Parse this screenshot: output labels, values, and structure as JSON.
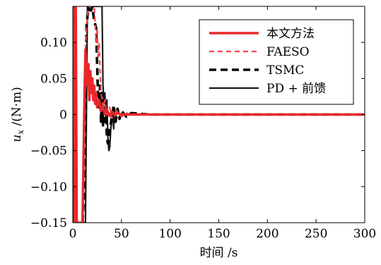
{
  "chart_data": {
    "type": "line",
    "title": "",
    "xlabel": "时间 /s",
    "ylabel_main": "u",
    "ylabel_sub": "x",
    "ylabel_unit": " /(N·m)",
    "xlim": [
      0,
      300
    ],
    "ylim": [
      -0.15,
      0.15
    ],
    "x_ticks": [
      0,
      50,
      100,
      150,
      200,
      250,
      300
    ],
    "x_tick_labels": [
      "0",
      "50",
      "100",
      "150",
      "200",
      "250",
      "300"
    ],
    "y_ticks": [
      -0.15,
      -0.1,
      -0.05,
      0,
      0.05,
      0.1
    ],
    "y_tick_labels": [
      "−0.15",
      "−0.10",
      "−0.05",
      "0",
      "0.05",
      "0.10"
    ],
    "grid": false,
    "legend_position": "top-right",
    "series": [
      {
        "name": "本文方法",
        "color": "#e8282d",
        "dash": "solid",
        "width": "thick",
        "x": [
          0,
          1,
          1.5,
          2,
          2.5,
          3,
          4,
          5,
          6,
          7,
          8,
          9,
          10,
          12,
          13,
          14,
          15,
          16,
          17,
          18,
          19,
          20,
          21,
          22,
          23,
          24,
          25,
          27,
          29,
          31,
          33,
          35,
          38,
          40,
          43,
          46,
          50,
          60,
          80,
          100,
          150,
          200,
          250,
          300
        ],
        "y": [
          0,
          0.15,
          0.15,
          -0.15,
          -0.15,
          0.15,
          -0.15,
          -0.15,
          -0.15,
          -0.15,
          -0.15,
          -0.15,
          -0.15,
          0.02,
          0.09,
          0.06,
          0.04,
          0.07,
          0.02,
          0.06,
          0.03,
          0.05,
          0.02,
          0.04,
          0.015,
          0.03,
          0.01,
          0.02,
          0.005,
          0.012,
          0,
          0.006,
          -0.002,
          0.004,
          -0.001,
          0.002,
          0,
          0,
          0,
          0,
          0,
          0,
          0,
          0
        ]
      },
      {
        "name": "FAESO",
        "color": "#f04545",
        "dash": "dashed",
        "width": "normal",
        "x": [
          0,
          1,
          3,
          5,
          7,
          10,
          12,
          14,
          16,
          18,
          20,
          22,
          24,
          25,
          26,
          27,
          28,
          29,
          31,
          33,
          35,
          38,
          40,
          45,
          50,
          55,
          60,
          70,
          80,
          100,
          150,
          200,
          250,
          300
        ],
        "y": [
          0.15,
          0.15,
          -0.15,
          -0.15,
          -0.15,
          -0.15,
          0.05,
          0.12,
          0.15,
          0.15,
          0.15,
          0.15,
          0.1,
          0.12,
          0.08,
          0.1,
          0.06,
          0.03,
          0.01,
          0.02,
          0,
          0.01,
          -0.005,
          0.005,
          -0.003,
          0.002,
          0,
          0.001,
          0,
          0,
          0,
          0,
          0,
          0
        ]
      },
      {
        "name": "TSMC",
        "color": "#000000",
        "dash": "dashed",
        "width": "thick",
        "x": [
          0,
          1,
          3,
          5,
          7,
          10,
          12,
          14,
          16,
          18,
          20,
          22,
          24,
          26,
          27,
          28,
          29,
          30,
          31,
          32,
          33,
          34,
          35,
          36,
          37,
          38,
          40,
          42,
          44,
          46,
          48,
          50,
          55,
          60,
          70,
          80,
          100,
          150,
          200,
          250,
          300
        ],
        "y": [
          0.15,
          -0.15,
          -0.15,
          -0.15,
          -0.15,
          -0.15,
          -0.1,
          0.12,
          0.15,
          0.14,
          0.15,
          0.13,
          0.12,
          0.02,
          0.01,
          0.04,
          -0.01,
          0.03,
          -0.015,
          0.02,
          -0.01,
          0.015,
          -0.03,
          -0.04,
          -0.035,
          -0.02,
          -0.005,
          0.012,
          -0.01,
          0.008,
          -0.006,
          0.005,
          -0.003,
          0.002,
          0.001,
          0,
          0,
          0,
          0,
          0,
          0
        ]
      },
      {
        "name": "PD + 前馈",
        "color": "#1a1a1a",
        "dash": "solid",
        "width": "normal",
        "x": [
          0,
          0.5,
          1,
          2,
          3,
          5,
          7,
          9,
          11,
          12,
          13,
          15,
          17,
          19,
          21,
          23,
          25,
          27,
          29,
          30,
          30.5,
          31,
          32,
          33,
          34,
          35,
          36,
          37,
          38,
          39,
          40,
          41,
          42,
          43
        ],
        "y": [
          0.15,
          0.15,
          -0.15,
          -0.15,
          -0.15,
          -0.15,
          -0.15,
          -0.15,
          -0.15,
          -0.15,
          -0.15,
          0.15,
          0.15,
          0.15,
          0.15,
          0.15,
          0.15,
          0.15,
          0.15,
          0.15,
          0.1,
          0.04,
          0.02,
          0.03,
          -0.01,
          0.02,
          -0.03,
          -0.05,
          -0.045,
          -0.02,
          -0.01,
          0.005,
          -0.02,
          0.01
        ]
      }
    ]
  }
}
